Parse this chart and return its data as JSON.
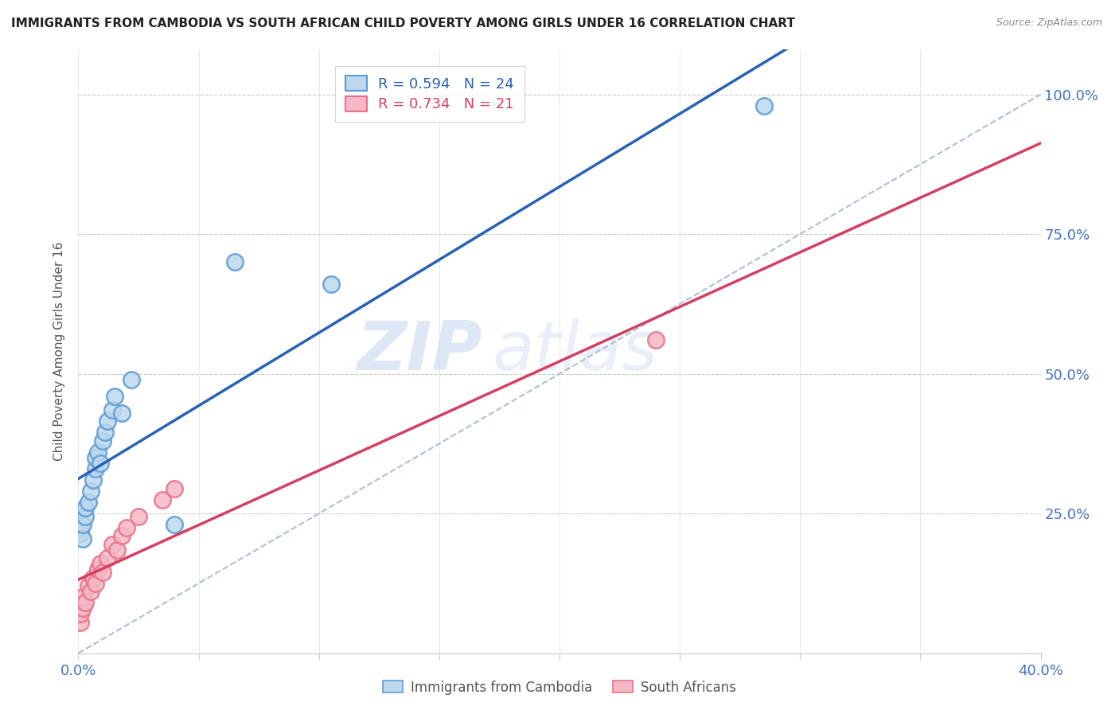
{
  "title": "IMMIGRANTS FROM CAMBODIA VS SOUTH AFRICAN CHILD POVERTY AMONG GIRLS UNDER 16 CORRELATION CHART",
  "source": "Source: ZipAtlas.com",
  "ylabel": "Child Poverty Among Girls Under 16",
  "xlim": [
    0.0,
    0.4
  ],
  "ylim": [
    0.0,
    1.08
  ],
  "x_ticks": [
    0.0,
    0.05,
    0.1,
    0.15,
    0.2,
    0.25,
    0.3,
    0.35,
    0.4
  ],
  "y_ticks": [
    0.0,
    0.25,
    0.5,
    0.75,
    1.0
  ],
  "y_tick_labels": [
    "",
    "25.0%",
    "50.0%",
    "75.0%",
    "100.0%"
  ],
  "cambodia_color": "#5b9bd5",
  "cambodia_color_fill": "#bdd7ee",
  "south_africa_color": "#e8728a",
  "south_africa_color_fill": "#f4b8c6",
  "R_cambodia": 0.594,
  "N_cambodia": 24,
  "R_south_africa": 0.734,
  "N_south_africa": 21,
  "watermark_zip": "ZIP",
  "watermark_atlas": "atlas",
  "legend_entries": [
    "Immigrants from Cambodia",
    "South Africans"
  ],
  "cambodia_x": [
    0.001,
    0.001,
    0.002,
    0.002,
    0.003,
    0.003,
    0.004,
    0.005,
    0.006,
    0.007,
    0.007,
    0.008,
    0.009,
    0.01,
    0.011,
    0.012,
    0.014,
    0.015,
    0.018,
    0.022,
    0.04,
    0.065,
    0.105,
    0.285
  ],
  "cambodia_y": [
    0.215,
    0.225,
    0.205,
    0.23,
    0.245,
    0.26,
    0.27,
    0.29,
    0.31,
    0.33,
    0.35,
    0.36,
    0.34,
    0.38,
    0.395,
    0.415,
    0.435,
    0.46,
    0.43,
    0.49,
    0.23,
    0.7,
    0.66,
    0.98
  ],
  "south_africa_x": [
    0.001,
    0.001,
    0.002,
    0.002,
    0.003,
    0.004,
    0.005,
    0.006,
    0.007,
    0.008,
    0.009,
    0.01,
    0.012,
    0.014,
    0.016,
    0.018,
    0.02,
    0.025,
    0.035,
    0.04,
    0.24
  ],
  "south_africa_y": [
    0.055,
    0.07,
    0.08,
    0.1,
    0.09,
    0.12,
    0.11,
    0.135,
    0.125,
    0.15,
    0.16,
    0.145,
    0.17,
    0.195,
    0.185,
    0.21,
    0.225,
    0.245,
    0.275,
    0.295,
    0.56
  ],
  "diag_color": "#a0b8d8",
  "blue_line_color": "#2962b3",
  "pink_line_color": "#d44060"
}
